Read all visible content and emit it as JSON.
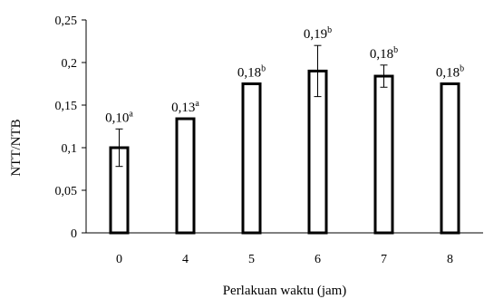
{
  "chart_data": {
    "type": "bar",
    "title": "",
    "xlabel": "Perlakuan waktu (jam)",
    "ylabel": "NTT/NTB",
    "ylim": [
      0,
      0.25
    ],
    "yticks": [
      "0",
      "0,05",
      "0,1",
      "0,15",
      "0,2",
      "0,25"
    ],
    "categories": [
      "0",
      "4",
      "5",
      "6",
      "7",
      "8"
    ],
    "series": [
      {
        "values": [
          0.1,
          0.134,
          0.175,
          0.19,
          0.184,
          0.175
        ],
        "error": [
          0.022,
          0,
          0,
          0.03,
          0.013,
          0
        ]
      }
    ],
    "data_labels": [
      {
        "value": "0,10",
        "letter": "a"
      },
      {
        "value": "0,13",
        "letter": "a"
      },
      {
        "value": "0,18",
        "letter": "b"
      },
      {
        "value": "0,19",
        "letter": "b"
      },
      {
        "value": "0,18",
        "letter": "b"
      },
      {
        "value": "0,18",
        "letter": "b"
      }
    ],
    "bar_fill": "#ffffff",
    "bar_stroke": "#000000",
    "grid": false,
    "legend": "none"
  }
}
